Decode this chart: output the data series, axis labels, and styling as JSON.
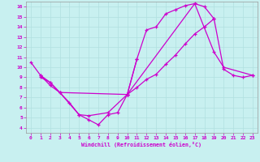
{
  "xlabel": "Windchill (Refroidissement éolien,°C)",
  "bg_color": "#c8f0f0",
  "grid_color": "#b0e0e0",
  "line_color": "#cc00cc",
  "xlim": [
    -0.5,
    23.5
  ],
  "ylim": [
    3.5,
    16.5
  ],
  "xticks": [
    0,
    1,
    2,
    3,
    4,
    5,
    6,
    7,
    8,
    9,
    10,
    11,
    12,
    13,
    14,
    15,
    16,
    17,
    18,
    19,
    20,
    21,
    22,
    23
  ],
  "yticks": [
    4,
    5,
    6,
    7,
    8,
    9,
    10,
    11,
    12,
    13,
    14,
    15,
    16
  ],
  "series1_x": [
    0,
    1,
    2,
    3,
    4,
    5,
    6,
    7,
    8,
    9,
    10,
    11
  ],
  "series1_y": [
    10.5,
    9.2,
    8.5,
    7.5,
    6.5,
    5.3,
    4.8,
    4.3,
    5.3,
    5.5,
    7.3,
    10.8
  ],
  "series2_x": [
    10,
    11,
    12,
    13,
    14,
    15,
    16,
    17,
    18,
    19
  ],
  "series2_y": [
    7.3,
    10.8,
    13.7,
    14.0,
    15.3,
    15.7,
    16.1,
    16.3,
    16.0,
    14.8
  ],
  "series3_x": [
    1,
    2,
    3,
    10,
    11,
    12,
    13,
    14,
    15,
    16,
    17,
    18,
    19,
    20,
    21,
    22,
    23
  ],
  "series3_y": [
    9.0,
    8.5,
    7.5,
    7.3,
    8.0,
    8.8,
    9.3,
    10.3,
    11.2,
    12.3,
    13.3,
    14.0,
    14.8,
    9.8,
    9.2,
    9.0,
    9.2
  ],
  "series4_x": [
    1,
    2,
    3,
    5,
    6,
    8,
    10,
    17,
    19,
    20,
    23
  ],
  "series4_y": [
    9.2,
    8.2,
    7.5,
    5.3,
    5.2,
    5.5,
    7.3,
    16.3,
    11.5,
    10.0,
    9.2
  ]
}
